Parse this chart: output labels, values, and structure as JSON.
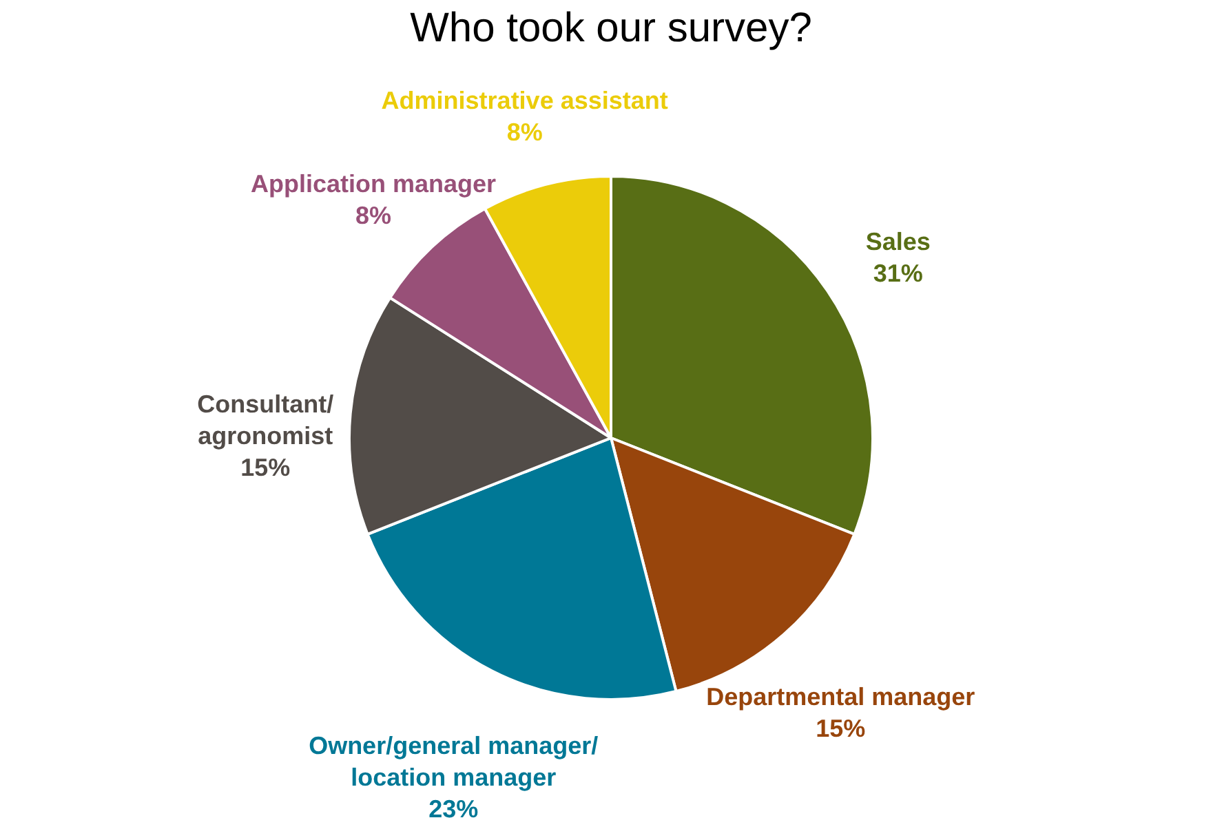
{
  "chart_data": {
    "type": "pie",
    "title": "Who took our survey?",
    "categories": [
      "Sales",
      "Departmental manager",
      "Owner/general manager/location manager",
      "Consultant/agronomist",
      "Application manager",
      "Administrative assistant"
    ],
    "values": [
      31,
      15,
      23,
      15,
      8,
      8
    ],
    "colors": [
      "#586e15",
      "#98450c",
      "#007896",
      "#524c48",
      "#985078",
      "#ebcc0a"
    ],
    "value_labels": [
      "31%",
      "15%",
      "23%",
      "15%",
      "8%",
      "8%"
    ],
    "legend": false
  }
}
